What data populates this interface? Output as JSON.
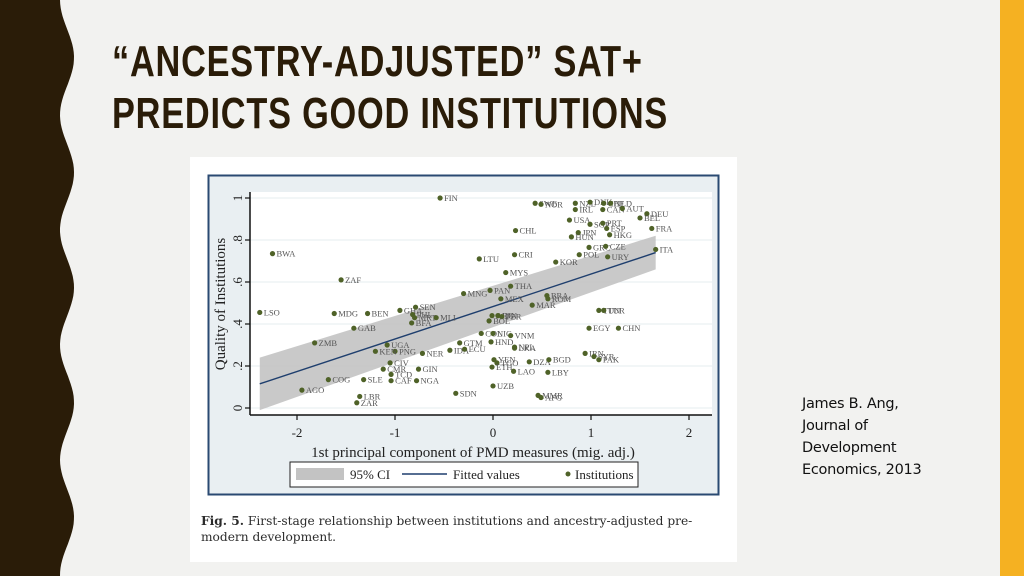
{
  "slide": {
    "title": "“Ancestry-adjusted” SAT+ predicts good institutions",
    "title_lines": [
      "“ANCESTRY-ADJUSTED” SAT+",
      "PREDICTS GOOD INSTITUTIONS"
    ],
    "colors": {
      "background": "#f2f2f0",
      "left_band": "#2a1c08",
      "right_bar": "#f5b122",
      "title": "#2a1c08"
    }
  },
  "citation": {
    "lines": [
      "James B. Ang,",
      "Journal of",
      "Development",
      "Economics, 2013"
    ]
  },
  "figure": {
    "caption_label": "Fig. 5.",
    "caption_text": " First-stage relationship between institutions and ancestry-adjusted pre-modern development."
  },
  "chart_data": {
    "type": "scatter",
    "title": "",
    "xlabel": "1st principal component of PMD measures (mig. adj.)",
    "ylabel": "Quality of Institutions",
    "xlim": [
      -2.45,
      2.2
    ],
    "ylim": [
      -0.03,
      1.03
    ],
    "xticks": [
      -2,
      -1,
      0,
      1,
      2
    ],
    "xtick_labels": [
      "-2",
      "-1",
      "0",
      "1",
      "2"
    ],
    "yticks": [
      0,
      0.2,
      0.4,
      0.6,
      0.8,
      1
    ],
    "ytick_labels": [
      "0",
      ".2",
      ".4",
      ".6",
      ".8",
      "1"
    ],
    "grid": "horizontal",
    "legend": {
      "position": "bottom",
      "entries": [
        "95% CI",
        "Fitted values",
        "Institutions"
      ]
    },
    "colors": {
      "points": "#4f6228",
      "fit_line": "#1f3f6e",
      "ci_band": "#c3c3c3",
      "frame_border": "#2a4a72",
      "frame_bg": "#e9eff2"
    },
    "fitted_line": {
      "x": [
        -2.38,
        1.66
      ],
      "y": [
        0.115,
        0.74
      ]
    },
    "ci_band": {
      "x": [
        -2.38,
        1.66
      ],
      "upper": [
        0.24,
        0.82
      ],
      "lower": [
        -0.01,
        0.66
      ]
    },
    "points": [
      {
        "label": "FIN",
        "x": -0.54,
        "y": 1.0
      },
      {
        "label": "SWE",
        "x": 0.43,
        "y": 0.975
      },
      {
        "label": "NOR",
        "x": 0.49,
        "y": 0.97
      },
      {
        "label": "NZL",
        "x": 0.84,
        "y": 0.975
      },
      {
        "label": "DNK",
        "x": 0.99,
        "y": 0.98
      },
      {
        "label": "CHE",
        "x": 1.13,
        "y": 0.975
      },
      {
        "label": "NLD",
        "x": 1.2,
        "y": 0.975
      },
      {
        "label": "IRL",
        "x": 0.84,
        "y": 0.945
      },
      {
        "label": "CAN",
        "x": 1.12,
        "y": 0.945
      },
      {
        "label": "AUT",
        "x": 1.32,
        "y": 0.95
      },
      {
        "label": "DEU",
        "x": 1.57,
        "y": 0.925
      },
      {
        "label": "BEL",
        "x": 1.5,
        "y": 0.905
      },
      {
        "label": "USA",
        "x": 0.78,
        "y": 0.895
      },
      {
        "label": "SGP",
        "x": 0.99,
        "y": 0.875
      },
      {
        "label": "PRT",
        "x": 1.12,
        "y": 0.88
      },
      {
        "label": "ESP",
        "x": 1.16,
        "y": 0.855
      },
      {
        "label": "FRA",
        "x": 1.62,
        "y": 0.855
      },
      {
        "label": "JPN",
        "x": 0.87,
        "y": 0.835
      },
      {
        "label": "HUN",
        "x": 0.8,
        "y": 0.815
      },
      {
        "label": "HKG",
        "x": 1.19,
        "y": 0.825
      },
      {
        "label": "CHL",
        "x": 0.23,
        "y": 0.845
      },
      {
        "label": "GRC",
        "x": 0.98,
        "y": 0.765
      },
      {
        "label": "CZE",
        "x": 1.15,
        "y": 0.77
      },
      {
        "label": "ITA",
        "x": 1.66,
        "y": 0.755
      },
      {
        "label": "POL",
        "x": 0.88,
        "y": 0.73
      },
      {
        "label": "URY",
        "x": 1.17,
        "y": 0.72
      },
      {
        "label": "KOR",
        "x": 0.64,
        "y": 0.695
      },
      {
        "label": "CRI",
        "x": 0.22,
        "y": 0.73
      },
      {
        "label": "LTU",
        "x": -0.14,
        "y": 0.71
      },
      {
        "label": "BWA",
        "x": -2.25,
        "y": 0.735
      },
      {
        "label": "MYS",
        "x": 0.13,
        "y": 0.645
      },
      {
        "label": "ZAF",
        "x": -1.55,
        "y": 0.61
      },
      {
        "label": "THA",
        "x": 0.18,
        "y": 0.58
      },
      {
        "label": "MNG",
        "x": -0.3,
        "y": 0.545
      },
      {
        "label": "PAN",
        "x": -0.03,
        "y": 0.56
      },
      {
        "label": "MEX",
        "x": 0.08,
        "y": 0.52
      },
      {
        "label": "BRA",
        "x": 0.55,
        "y": 0.535
      },
      {
        "label": "ROM",
        "x": 0.56,
        "y": 0.52
      },
      {
        "label": "MAR",
        "x": 0.4,
        "y": 0.49
      },
      {
        "label": "TUN",
        "x": 1.08,
        "y": 0.465
      },
      {
        "label": "TUR",
        "x": 1.13,
        "y": 0.465
      },
      {
        "label": "LSO",
        "x": -2.38,
        "y": 0.455
      },
      {
        "label": "MDG",
        "x": -1.62,
        "y": 0.45
      },
      {
        "label": "BEN",
        "x": -1.28,
        "y": 0.45
      },
      {
        "label": "GHA",
        "x": -0.95,
        "y": 0.465
      },
      {
        "label": "SEN",
        "x": -0.79,
        "y": 0.48
      },
      {
        "label": "PHL",
        "x": -0.82,
        "y": 0.445
      },
      {
        "label": "MRT",
        "x": -0.8,
        "y": 0.43
      },
      {
        "label": "MLI",
        "x": -0.58,
        "y": 0.43
      },
      {
        "label": "BFA",
        "x": -0.83,
        "y": 0.405
      },
      {
        "label": "GAB",
        "x": -1.42,
        "y": 0.38
      },
      {
        "label": "ARG",
        "x": -0.01,
        "y": 0.44
      },
      {
        "label": "IDN",
        "x": 0.05,
        "y": 0.44
      },
      {
        "label": "PER",
        "x": 0.09,
        "y": 0.435
      },
      {
        "label": "BOL",
        "x": -0.04,
        "y": 0.415
      },
      {
        "label": "EGY",
        "x": 0.98,
        "y": 0.38
      },
      {
        "label": "CHN",
        "x": 1.28,
        "y": 0.38
      },
      {
        "label": "GTM",
        "x": -0.34,
        "y": 0.31
      },
      {
        "label": "COL",
        "x": -0.12,
        "y": 0.355
      },
      {
        "label": "NIC",
        "x": 0.0,
        "y": 0.355
      },
      {
        "label": "VNM",
        "x": 0.18,
        "y": 0.345
      },
      {
        "label": "HND",
        "x": -0.02,
        "y": 0.315
      },
      {
        "label": "ZMB",
        "x": -1.82,
        "y": 0.31
      },
      {
        "label": "UGA",
        "x": -1.08,
        "y": 0.3
      },
      {
        "label": "PNG",
        "x": -1.0,
        "y": 0.27
      },
      {
        "label": "KEN",
        "x": -1.2,
        "y": 0.27
      },
      {
        "label": "NER",
        "x": -0.72,
        "y": 0.26
      },
      {
        "label": "IDA",
        "x": -0.44,
        "y": 0.275
      },
      {
        "label": "ECU",
        "x": -0.29,
        "y": 0.28
      },
      {
        "label": "NPL",
        "x": 0.22,
        "y": 0.29
      },
      {
        "label": "LKA",
        "x": 0.22,
        "y": 0.285
      },
      {
        "label": "IRN",
        "x": 0.94,
        "y": 0.26
      },
      {
        "label": "SYR",
        "x": 1.03,
        "y": 0.245
      },
      {
        "label": "PAK",
        "x": 1.08,
        "y": 0.23
      },
      {
        "label": "YEN",
        "x": 0.01,
        "y": 0.23
      },
      {
        "label": "TGO",
        "x": 0.04,
        "y": 0.215
      },
      {
        "label": "DZA",
        "x": 0.37,
        "y": 0.22
      },
      {
        "label": "BGD",
        "x": 0.57,
        "y": 0.23
      },
      {
        "label": "CIV",
        "x": -1.05,
        "y": 0.215
      },
      {
        "label": "GIN",
        "x": -0.76,
        "y": 0.185
      },
      {
        "label": "CMR",
        "x": -1.12,
        "y": 0.185
      },
      {
        "label": "ETH",
        "x": -0.01,
        "y": 0.195
      },
      {
        "label": "LAO",
        "x": 0.21,
        "y": 0.175
      },
      {
        "label": "LBY",
        "x": 0.56,
        "y": 0.17
      },
      {
        "label": "TCD",
        "x": -1.04,
        "y": 0.16
      },
      {
        "label": "COG",
        "x": -1.68,
        "y": 0.135
      },
      {
        "label": "SLE",
        "x": -1.32,
        "y": 0.135
      },
      {
        "label": "CAF",
        "x": -1.04,
        "y": 0.13
      },
      {
        "label": "NGA",
        "x": -0.78,
        "y": 0.13
      },
      {
        "label": "UZB",
        "x": 0.0,
        "y": 0.105
      },
      {
        "label": "AGO",
        "x": -1.95,
        "y": 0.085
      },
      {
        "label": "SDN",
        "x": -0.38,
        "y": 0.07
      },
      {
        "label": "MMR",
        "x": 0.46,
        "y": 0.06
      },
      {
        "label": "AFG",
        "x": 0.49,
        "y": 0.05
      },
      {
        "label": "LBR",
        "x": -1.36,
        "y": 0.055
      },
      {
        "label": "ZAR",
        "x": -1.39,
        "y": 0.025
      }
    ]
  }
}
